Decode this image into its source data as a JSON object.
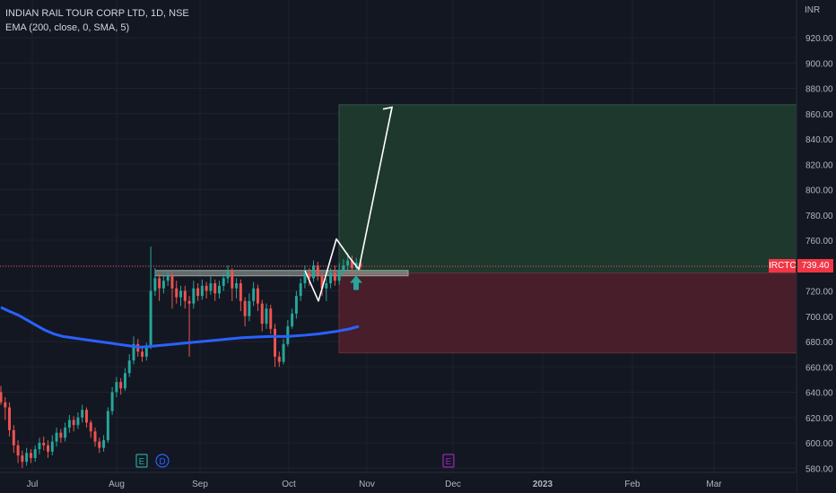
{
  "legend": {
    "title": "INDIAN RAIL TOUR CORP LTD, 1D, NSE",
    "indicator": "EMA (200, close, 0, SMA, 5)"
  },
  "price_scale": {
    "currency": "INR",
    "ticks": [
      "920.00",
      "900.00",
      "880.00",
      "860.00",
      "840.00",
      "820.00",
      "800.00",
      "780.00",
      "760.00",
      "740.00",
      "720.00",
      "700.00",
      "680.00",
      "660.00",
      "640.00",
      "620.00",
      "600.00",
      "580.00"
    ]
  },
  "time_scale": {
    "labels": [
      "Jul",
      "Aug",
      "Sep",
      "Oct",
      "Nov",
      "Dec",
      "2023",
      "Feb",
      "Mar"
    ]
  },
  "last_price": {
    "symbol": "IRCTC",
    "value": "739.40"
  },
  "events": [
    {
      "letter": "E",
      "color": "#26a69a"
    },
    {
      "letter": "D",
      "color": "#2962ff"
    },
    {
      "letter": "E",
      "color": "#9c27b0"
    }
  ],
  "colors": {
    "up": "#26a69a",
    "down": "#ef5350",
    "ema": "#2962ff",
    "profit_zone": "#1f3a2e",
    "loss_zone": "#4a1f2a",
    "grid": "#1e222d",
    "axis_text": "#b2b5be"
  },
  "chart_data": {
    "type": "candlestick",
    "yrange": [
      575,
      935
    ],
    "candles": [
      [
        640,
        632,
        645,
        630
      ],
      [
        632,
        628,
        636,
        618
      ],
      [
        628,
        610,
        632,
        605
      ],
      [
        610,
        598,
        614,
        592
      ],
      [
        598,
        590,
        602,
        584
      ],
      [
        590,
        585,
        594,
        580
      ],
      [
        585,
        592,
        596,
        582
      ],
      [
        592,
        588,
        595,
        584
      ],
      [
        588,
        595,
        598,
        585
      ],
      [
        595,
        600,
        604,
        591
      ],
      [
        600,
        598,
        605,
        594
      ],
      [
        598,
        593,
        602,
        588
      ],
      [
        593,
        601,
        606,
        590
      ],
      [
        601,
        608,
        612,
        597
      ],
      [
        608,
        604,
        611,
        600
      ],
      [
        604,
        612,
        616,
        601
      ],
      [
        612,
        618,
        622,
        608
      ],
      [
        618,
        614,
        621,
        609
      ],
      [
        614,
        620,
        624,
        611
      ],
      [
        620,
        626,
        630,
        616
      ],
      [
        626,
        616,
        628,
        612
      ],
      [
        616,
        609,
        618,
        604
      ],
      [
        609,
        601,
        612,
        597
      ],
      [
        601,
        596,
        604,
        592
      ],
      [
        596,
        602,
        606,
        593
      ],
      [
        602,
        625,
        628,
        600
      ],
      [
        625,
        640,
        644,
        622
      ],
      [
        640,
        648,
        652,
        636
      ],
      [
        648,
        643,
        651,
        638
      ],
      [
        643,
        655,
        659,
        641
      ],
      [
        655,
        665,
        670,
        652
      ],
      [
        665,
        678,
        684,
        662
      ],
      [
        678,
        672,
        682,
        668
      ],
      [
        672,
        668,
        676,
        664
      ],
      [
        668,
        676,
        679,
        665
      ],
      [
        676,
        720,
        755,
        674
      ],
      [
        720,
        730,
        738,
        716
      ],
      [
        730,
        722,
        733,
        712
      ],
      [
        722,
        728,
        732,
        718
      ],
      [
        728,
        732,
        736,
        724
      ],
      [
        732,
        722,
        735,
        706
      ],
      [
        722,
        715,
        728,
        710
      ],
      [
        715,
        720,
        724,
        708
      ],
      [
        720,
        712,
        724,
        706
      ],
      [
        712,
        710,
        716,
        668
      ],
      [
        710,
        722,
        728,
        706
      ],
      [
        722,
        716,
        726,
        712
      ],
      [
        716,
        724,
        729,
        713
      ],
      [
        724,
        720,
        727,
        714
      ],
      [
        720,
        726,
        732,
        717
      ],
      [
        726,
        718,
        729,
        712
      ],
      [
        718,
        724,
        728,
        714
      ],
      [
        724,
        730,
        734,
        720
      ],
      [
        730,
        736,
        740,
        726
      ],
      [
        736,
        722,
        738,
        712
      ],
      [
        722,
        726,
        730,
        714
      ],
      [
        726,
        712,
        729,
        704
      ],
      [
        712,
        700,
        715,
        692
      ],
      [
        700,
        712,
        718,
        696
      ],
      [
        712,
        722,
        727,
        708
      ],
      [
        722,
        710,
        725,
        704
      ],
      [
        710,
        694,
        713,
        688
      ],
      [
        694,
        706,
        710,
        690
      ],
      [
        706,
        690,
        709,
        686
      ],
      [
        690,
        668,
        694,
        660
      ],
      [
        668,
        664,
        672,
        660
      ],
      [
        664,
        678,
        682,
        662
      ],
      [
        678,
        692,
        697,
        676
      ],
      [
        692,
        702,
        706,
        690
      ],
      [
        702,
        716,
        720,
        698
      ],
      [
        716,
        726,
        730,
        712
      ],
      [
        726,
        734,
        740,
        722
      ],
      [
        734,
        730,
        738,
        724
      ],
      [
        730,
        740,
        744,
        727
      ],
      [
        740,
        732,
        743,
        728
      ],
      [
        732,
        722,
        735,
        716
      ],
      [
        722,
        726,
        730,
        712
      ],
      [
        726,
        734,
        738,
        722
      ],
      [
        734,
        728,
        740,
        724
      ],
      [
        728,
        736,
        742,
        725
      ],
      [
        736,
        740,
        745,
        732
      ],
      [
        740,
        744,
        750,
        736
      ],
      [
        744,
        738,
        748,
        734
      ],
      [
        738,
        742,
        746,
        734
      ],
      [
        742,
        739,
        744,
        736
      ]
    ],
    "ema": [
      [
        1,
        707
      ],
      [
        10,
        704
      ],
      [
        20,
        701
      ],
      [
        30,
        697
      ],
      [
        40,
        693
      ],
      [
        50,
        689
      ],
      [
        60,
        686
      ],
      [
        70,
        684
      ],
      [
        80,
        683
      ],
      [
        90,
        682
      ],
      [
        100,
        681
      ],
      [
        110,
        680
      ],
      [
        120,
        679
      ],
      [
        130,
        678
      ],
      [
        140,
        677
      ],
      [
        150,
        676
      ],
      [
        155,
        675.5
      ],
      [
        165,
        676
      ],
      [
        180,
        677
      ],
      [
        195,
        678
      ],
      [
        210,
        679
      ],
      [
        225,
        680
      ],
      [
        240,
        681
      ],
      [
        255,
        682
      ],
      [
        270,
        683
      ],
      [
        285,
        683.5
      ],
      [
        300,
        684
      ],
      [
        320,
        684
      ],
      [
        340,
        685
      ],
      [
        355,
        686
      ],
      [
        365,
        687
      ],
      [
        375,
        688
      ],
      [
        390,
        690
      ],
      [
        400,
        692
      ]
    ],
    "resistance": {
      "x1": 173,
      "x2": 455,
      "y": 734
    },
    "long_position": {
      "x1": 378,
      "x2": 888,
      "target": 867,
      "entry": 734,
      "stop": 671
    },
    "projection": [
      [
        340,
        736
      ],
      [
        355,
        712
      ],
      [
        375,
        761
      ],
      [
        390,
        746
      ],
      [
        400,
        737
      ],
      [
        437,
        865
      ]
    ],
    "last_price_line": 739.4,
    "signal_arrow": {
      "x": 397,
      "price": 725
    }
  }
}
